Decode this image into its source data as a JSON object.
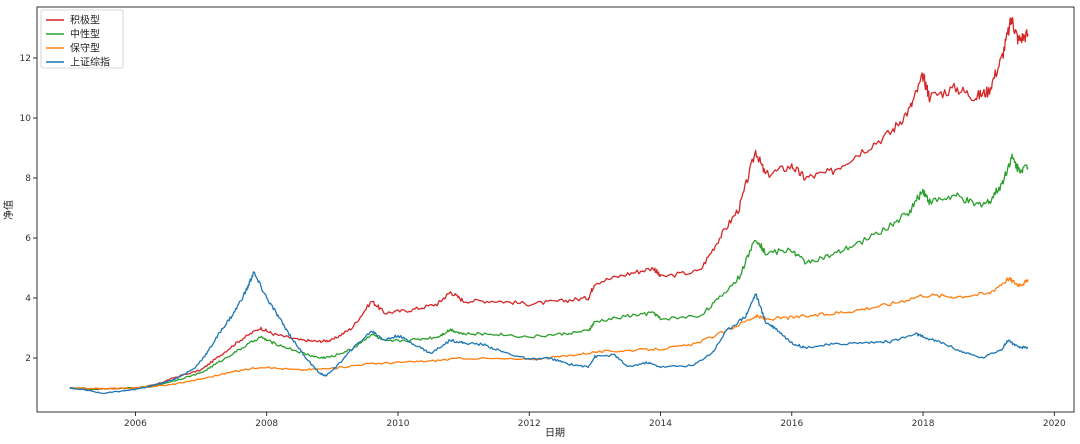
{
  "chart_data": {
    "type": "line",
    "title": "",
    "xlabel": "日期",
    "ylabel": "净值",
    "xlim": [
      2004.5,
      2020.3
    ],
    "ylim": [
      0.2,
      13.7
    ],
    "x_ticks": [
      2006,
      2008,
      2010,
      2012,
      2014,
      2016,
      2018,
      2020
    ],
    "x_tick_labels": [
      "2006",
      "2008",
      "2010",
      "2012",
      "2014",
      "2016",
      "2018",
      "2020"
    ],
    "y_ticks": [
      2,
      4,
      6,
      8,
      10,
      12
    ],
    "y_tick_labels": [
      "2",
      "4",
      "6",
      "8",
      "10",
      "12"
    ],
    "grid": false,
    "legend_position": "top-left",
    "series": [
      {
        "name": "积极型",
        "color": "#d62728",
        "points": [
          [
            2005.0,
            1.0
          ],
          [
            2005.3,
            0.95
          ],
          [
            2005.6,
            0.98
          ],
          [
            2006.0,
            1.0
          ],
          [
            2006.3,
            1.1
          ],
          [
            2006.6,
            1.35
          ],
          [
            2007.0,
            1.6
          ],
          [
            2007.3,
            2.1
          ],
          [
            2007.6,
            2.6
          ],
          [
            2007.9,
            3.0
          ],
          [
            2008.1,
            2.8
          ],
          [
            2008.5,
            2.6
          ],
          [
            2008.8,
            2.55
          ],
          [
            2009.0,
            2.6
          ],
          [
            2009.3,
            3.0
          ],
          [
            2009.6,
            3.9
          ],
          [
            2009.8,
            3.5
          ],
          [
            2010.2,
            3.6
          ],
          [
            2010.6,
            3.8
          ],
          [
            2010.8,
            4.2
          ],
          [
            2011.0,
            3.9
          ],
          [
            2011.5,
            3.9
          ],
          [
            2012.0,
            3.8
          ],
          [
            2012.5,
            3.9
          ],
          [
            2012.9,
            4.0
          ],
          [
            2013.0,
            4.5
          ],
          [
            2013.5,
            4.8
          ],
          [
            2013.9,
            5.0
          ],
          [
            2014.0,
            4.7
          ],
          [
            2014.6,
            4.9
          ],
          [
            2014.9,
            6.0
          ],
          [
            2015.2,
            7.0
          ],
          [
            2015.45,
            8.9
          ],
          [
            2015.6,
            8.1
          ],
          [
            2016.0,
            8.4
          ],
          [
            2016.2,
            8.0
          ],
          [
            2016.6,
            8.2
          ],
          [
            2017.0,
            8.8
          ],
          [
            2017.5,
            9.5
          ],
          [
            2017.8,
            10.3
          ],
          [
            2018.0,
            11.4
          ],
          [
            2018.1,
            10.7
          ],
          [
            2018.5,
            11.0
          ],
          [
            2018.8,
            10.7
          ],
          [
            2019.0,
            10.9
          ],
          [
            2019.2,
            12.0
          ],
          [
            2019.35,
            13.3
          ],
          [
            2019.45,
            12.6
          ],
          [
            2019.6,
            12.8
          ]
        ]
      },
      {
        "name": "中性型",
        "color": "#2ca02c",
        "points": [
          [
            2005.0,
            1.0
          ],
          [
            2005.3,
            0.96
          ],
          [
            2005.6,
            0.98
          ],
          [
            2006.0,
            1.0
          ],
          [
            2006.3,
            1.08
          ],
          [
            2006.6,
            1.25
          ],
          [
            2007.0,
            1.5
          ],
          [
            2007.3,
            1.9
          ],
          [
            2007.6,
            2.3
          ],
          [
            2007.9,
            2.7
          ],
          [
            2008.1,
            2.5
          ],
          [
            2008.5,
            2.2
          ],
          [
            2008.8,
            2.0
          ],
          [
            2009.0,
            2.05
          ],
          [
            2009.3,
            2.3
          ],
          [
            2009.6,
            2.8
          ],
          [
            2009.8,
            2.55
          ],
          [
            2010.2,
            2.6
          ],
          [
            2010.6,
            2.7
          ],
          [
            2010.8,
            2.95
          ],
          [
            2011.0,
            2.8
          ],
          [
            2011.5,
            2.8
          ],
          [
            2012.0,
            2.7
          ],
          [
            2012.5,
            2.8
          ],
          [
            2012.9,
            2.9
          ],
          [
            2013.0,
            3.2
          ],
          [
            2013.5,
            3.4
          ],
          [
            2013.9,
            3.5
          ],
          [
            2014.0,
            3.3
          ],
          [
            2014.6,
            3.4
          ],
          [
            2014.9,
            4.0
          ],
          [
            2015.2,
            4.7
          ],
          [
            2015.45,
            6.0
          ],
          [
            2015.6,
            5.5
          ],
          [
            2016.0,
            5.6
          ],
          [
            2016.2,
            5.2
          ],
          [
            2016.6,
            5.4
          ],
          [
            2017.0,
            5.8
          ],
          [
            2017.5,
            6.4
          ],
          [
            2017.8,
            6.9
          ],
          [
            2018.0,
            7.6
          ],
          [
            2018.1,
            7.2
          ],
          [
            2018.5,
            7.4
          ],
          [
            2018.8,
            7.1
          ],
          [
            2019.0,
            7.2
          ],
          [
            2019.2,
            7.8
          ],
          [
            2019.35,
            8.7
          ],
          [
            2019.45,
            8.3
          ],
          [
            2019.6,
            8.35
          ]
        ]
      },
      {
        "name": "保守型",
        "color": "#ff7f0e",
        "points": [
          [
            2005.0,
            1.0
          ],
          [
            2005.5,
            0.98
          ],
          [
            2006.0,
            1.0
          ],
          [
            2006.5,
            1.1
          ],
          [
            2007.0,
            1.3
          ],
          [
            2007.5,
            1.55
          ],
          [
            2007.9,
            1.7
          ],
          [
            2008.5,
            1.6
          ],
          [
            2009.0,
            1.65
          ],
          [
            2009.5,
            1.8
          ],
          [
            2010.0,
            1.85
          ],
          [
            2010.5,
            1.9
          ],
          [
            2011.0,
            2.0
          ],
          [
            2012.0,
            1.95
          ],
          [
            2012.5,
            2.05
          ],
          [
            2013.0,
            2.2
          ],
          [
            2013.5,
            2.25
          ],
          [
            2014.0,
            2.3
          ],
          [
            2014.5,
            2.45
          ],
          [
            2015.0,
            2.9
          ],
          [
            2015.45,
            3.4
          ],
          [
            2015.6,
            3.3
          ],
          [
            2016.0,
            3.35
          ],
          [
            2016.5,
            3.45
          ],
          [
            2017.0,
            3.6
          ],
          [
            2017.5,
            3.8
          ],
          [
            2018.0,
            4.1
          ],
          [
            2018.5,
            4.05
          ],
          [
            2019.0,
            4.15
          ],
          [
            2019.3,
            4.65
          ],
          [
            2019.45,
            4.45
          ],
          [
            2019.6,
            4.55
          ]
        ]
      },
      {
        "name": "上证综指",
        "color": "#1f77b4",
        "points": [
          [
            2005.0,
            1.0
          ],
          [
            2005.2,
            0.95
          ],
          [
            2005.5,
            0.82
          ],
          [
            2005.8,
            0.9
          ],
          [
            2006.0,
            0.95
          ],
          [
            2006.3,
            1.1
          ],
          [
            2006.6,
            1.3
          ],
          [
            2006.9,
            1.65
          ],
          [
            2007.1,
            2.2
          ],
          [
            2007.3,
            2.9
          ],
          [
            2007.5,
            3.5
          ],
          [
            2007.7,
            4.3
          ],
          [
            2007.8,
            4.85
          ],
          [
            2008.0,
            4.0
          ],
          [
            2008.2,
            3.3
          ],
          [
            2008.4,
            2.6
          ],
          [
            2008.6,
            2.0
          ],
          [
            2008.8,
            1.5
          ],
          [
            2008.9,
            1.4
          ],
          [
            2009.1,
            1.8
          ],
          [
            2009.3,
            2.3
          ],
          [
            2009.6,
            2.9
          ],
          [
            2009.8,
            2.6
          ],
          [
            2010.0,
            2.75
          ],
          [
            2010.3,
            2.4
          ],
          [
            2010.5,
            2.15
          ],
          [
            2010.8,
            2.6
          ],
          [
            2011.0,
            2.5
          ],
          [
            2011.3,
            2.45
          ],
          [
            2011.6,
            2.2
          ],
          [
            2012.0,
            1.95
          ],
          [
            2012.3,
            2.0
          ],
          [
            2012.6,
            1.8
          ],
          [
            2012.9,
            1.7
          ],
          [
            2013.0,
            2.05
          ],
          [
            2013.3,
            2.1
          ],
          [
            2013.5,
            1.7
          ],
          [
            2013.8,
            1.85
          ],
          [
            2014.0,
            1.7
          ],
          [
            2014.5,
            1.75
          ],
          [
            2014.8,
            2.2
          ],
          [
            2015.0,
            2.9
          ],
          [
            2015.3,
            3.4
          ],
          [
            2015.45,
            4.15
          ],
          [
            2015.6,
            3.2
          ],
          [
            2015.75,
            3.0
          ],
          [
            2016.0,
            2.5
          ],
          [
            2016.2,
            2.35
          ],
          [
            2016.6,
            2.45
          ],
          [
            2017.0,
            2.5
          ],
          [
            2017.5,
            2.55
          ],
          [
            2017.9,
            2.8
          ],
          [
            2018.0,
            2.7
          ],
          [
            2018.3,
            2.5
          ],
          [
            2018.6,
            2.2
          ],
          [
            2018.9,
            2.0
          ],
          [
            2019.2,
            2.3
          ],
          [
            2019.3,
            2.6
          ],
          [
            2019.45,
            2.35
          ],
          [
            2019.6,
            2.35
          ]
        ]
      }
    ]
  }
}
